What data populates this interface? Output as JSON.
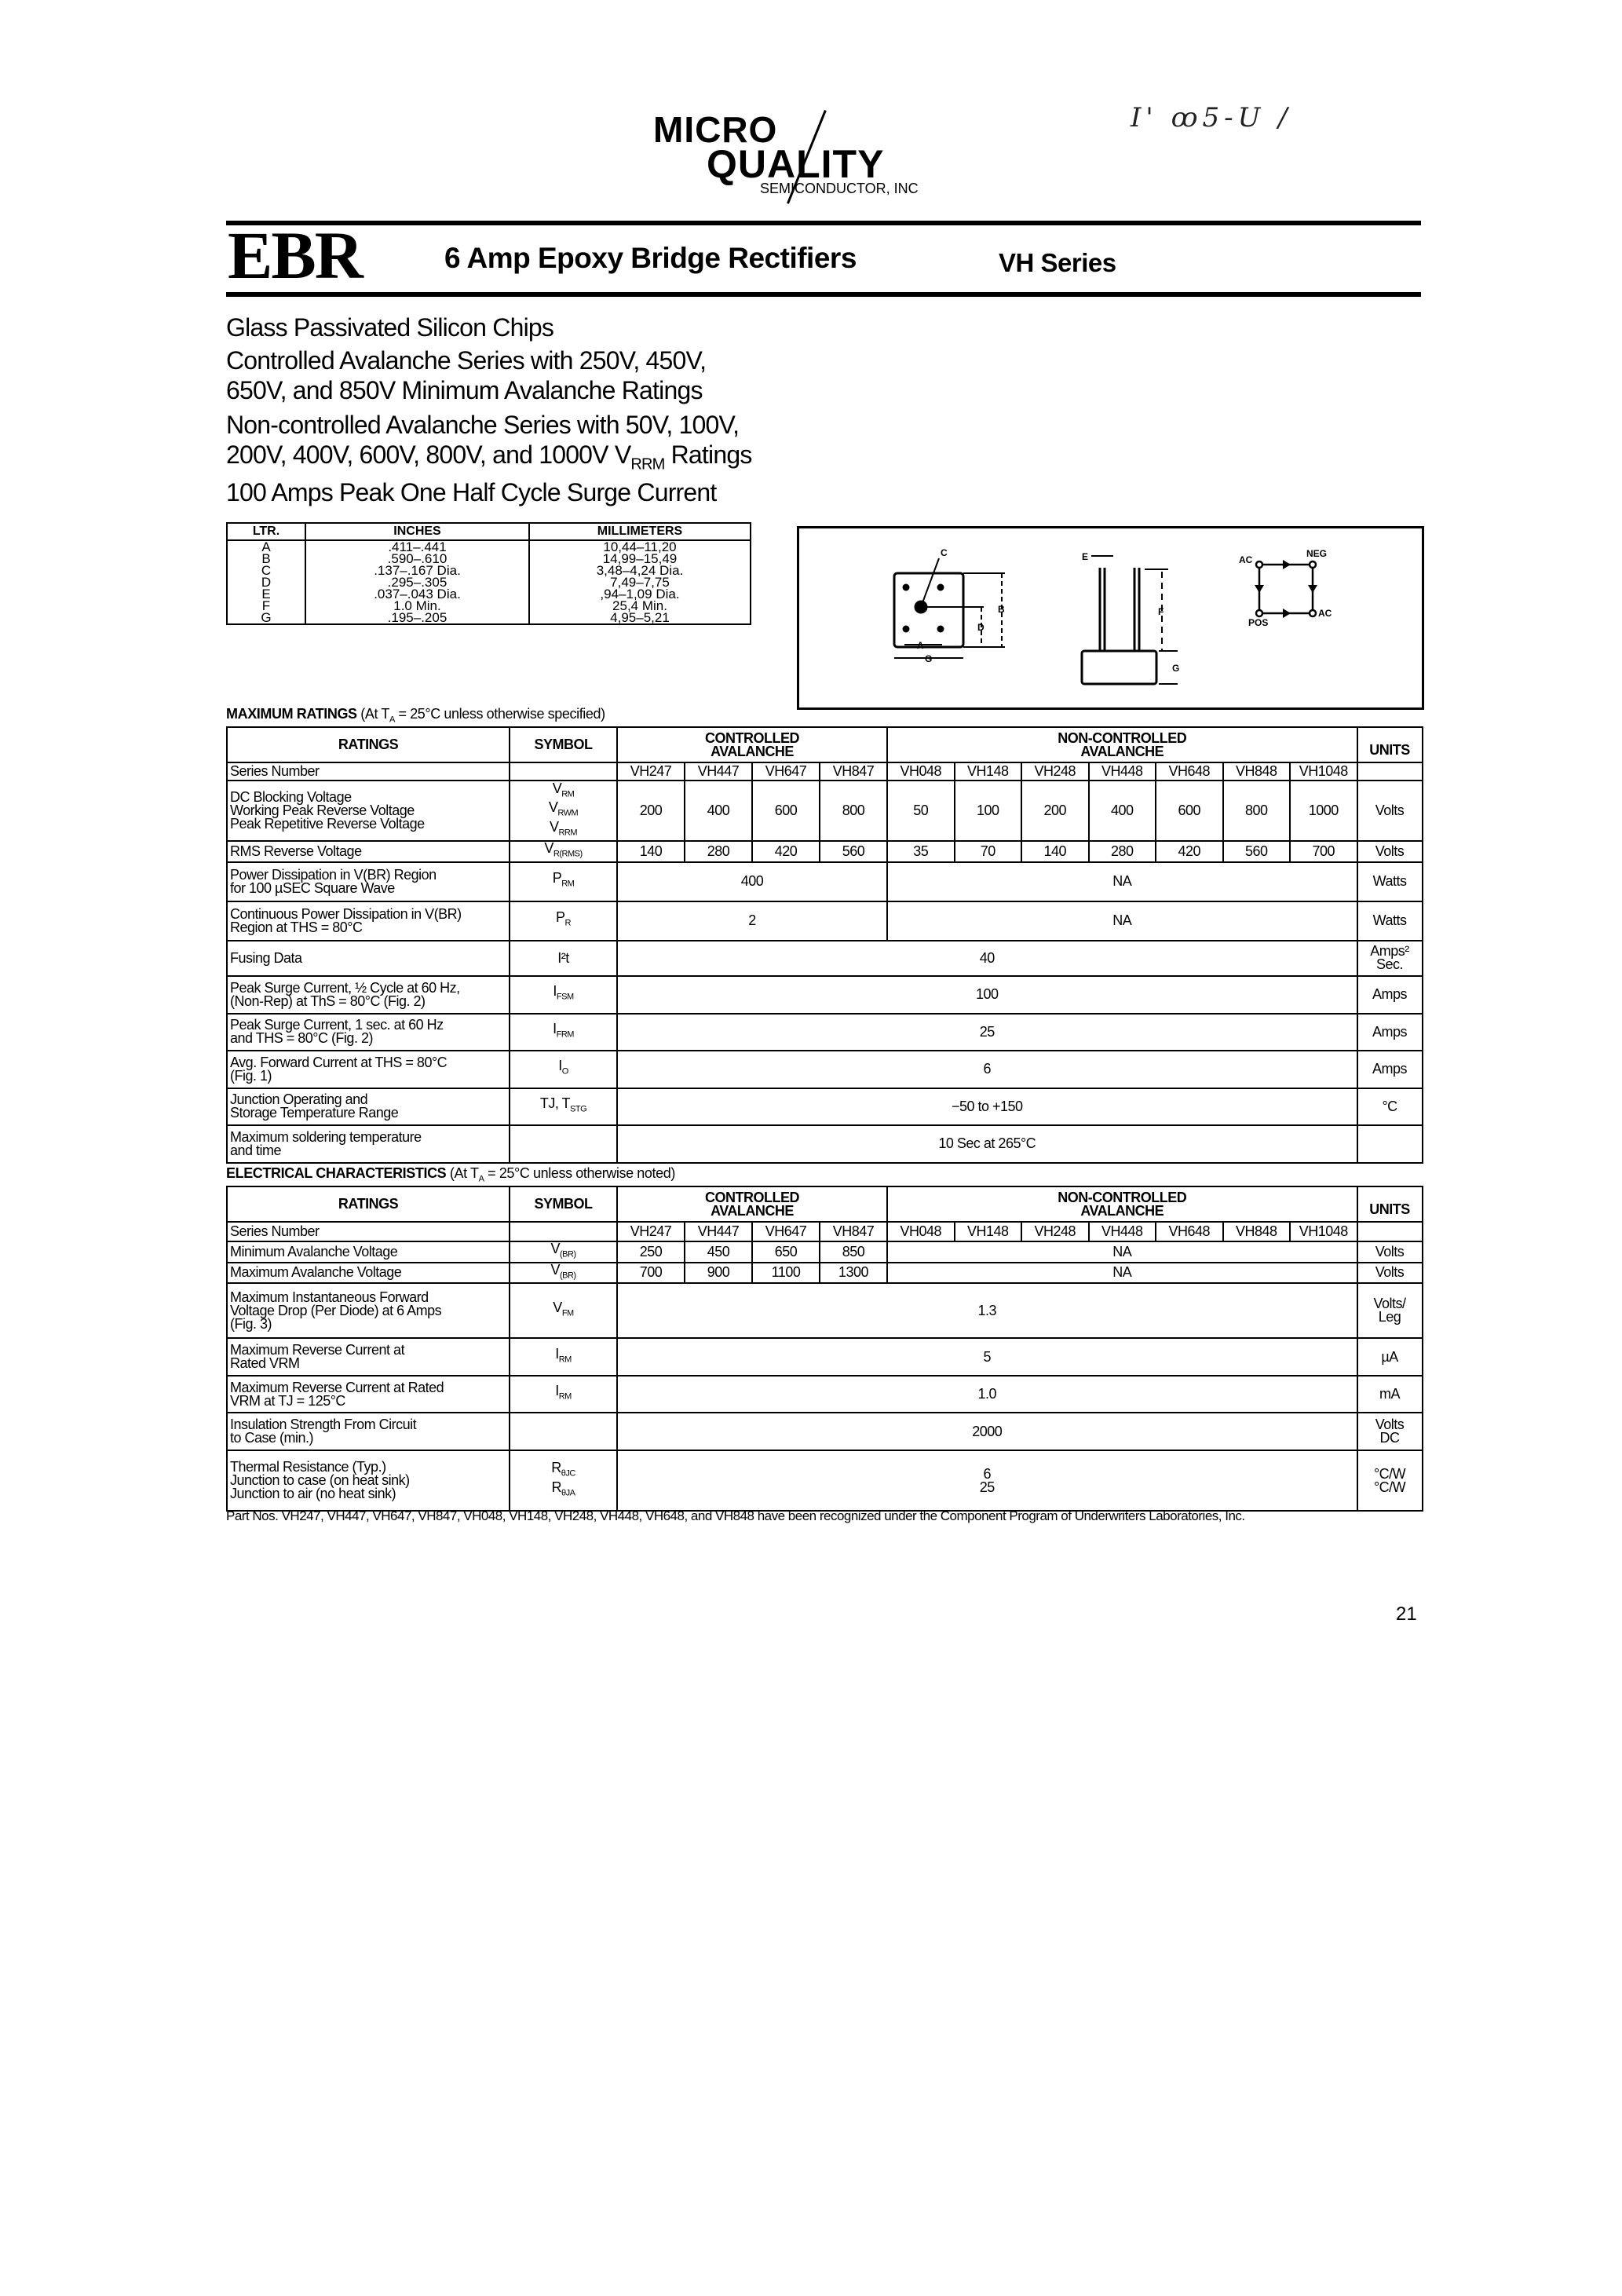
{
  "logo": {
    "line1": "MICRO",
    "line2": "QUALITY",
    "line3": "SEMICONDUCTOR, INC"
  },
  "handwritten_note": "I' ꝏ5-U /",
  "header": {
    "code": "EBR",
    "title": "6 Amp Epoxy Bridge Rectifiers",
    "series": "VH Series"
  },
  "features": [
    {
      "text": "Glass Passivated Silicon Chips"
    },
    {
      "text": "Controlled Avalanche Series with 250V, 450V,\n   650V, and 850V Minimum Avalanche Ratings"
    },
    {
      "text": "Non-controlled Avalanche Series with 50V, 100V,\n   200V, 400V, 600V, 800V, and 1000V V",
      "sub": "RRM",
      "tail": " Ratings"
    },
    {
      "text": "100 Amps Peak One Half Cycle Surge Current"
    }
  ],
  "dimensions": {
    "headers": [
      "LTR.",
      "INCHES",
      "MILLIMETERS"
    ],
    "letters": "A\nB\nC\nD\nE\nF\nG",
    "inches": ".411–.441\n.590–.610\n.137–.167 Dia.\n.295–.305\n.037–.043 Dia.\n1.0 Min.\n.195–.205",
    "mm": "10,44–11,20\n14,99–15,49\n3,48–4,24 Dia.\n7,49–7,75\n,94–1,09 Dia.\n25,4 Min.\n4,95–5,21"
  },
  "diagram": {
    "labels": {
      "a": "A",
      "b": "B",
      "c": "C",
      "d": "D",
      "e": "E",
      "f": "F",
      "g": "G",
      "ac1": "AC",
      "neg": "NEG",
      "pos": "POS",
      "ac2": "AC"
    }
  },
  "max_ratings": {
    "title_bold": "MAXIMUM RATINGS",
    "title_rest": " (At T",
    "title_sub": "A",
    "title_end": " = 25°C unless otherwise specified)",
    "col_ratings": "RATINGS",
    "col_symbol": "SYMBOL",
    "col_controlled": "CONTROLLED\nAVALANCHE",
    "col_noncontrolled": "NON-CONTROLLED\nAVALANCHE",
    "col_units": "UNITS",
    "series_label": "Series Number",
    "series": [
      "VH247",
      "VH447",
      "VH647",
      "VH847",
      "VH048",
      "VH148",
      "VH248",
      "VH448",
      "VH648",
      "VH848",
      "VH1048"
    ],
    "rows": [
      {
        "rating": "DC Blocking Voltage\nWorking Peak Reverse Voltage\nPeak Repetitive Reverse Voltage",
        "symbol": [
          {
            "b": "V",
            "s": "RM"
          },
          {
            "b": "V",
            "s": "RWM"
          },
          {
            "b": "V",
            "s": "RRM"
          }
        ],
        "values": [
          "200",
          "400",
          "600",
          "800",
          "50",
          "100",
          "200",
          "400",
          "600",
          "800",
          "1000"
        ],
        "units": "Volts"
      },
      {
        "rating": "RMS Reverse Voltage",
        "symbol": [
          {
            "b": "V",
            "s": "R(RMS)"
          }
        ],
        "values": [
          "140",
          "280",
          "420",
          "560",
          "35",
          "70",
          "140",
          "280",
          "420",
          "560",
          "700"
        ],
        "units": "Volts"
      },
      {
        "rating": "Power Dissipation in V(BR) Region\nfor 100 µSEC Square Wave",
        "symbol": [
          {
            "b": "P",
            "s": "RM"
          }
        ],
        "controlled": "400",
        "noncontrolled": "NA",
        "units": "Watts"
      },
      {
        "rating": "Continuous Power Dissipation in V(BR)\nRegion at THS = 80°C",
        "symbol": [
          {
            "b": "P",
            "s": "R"
          }
        ],
        "controlled": "2",
        "noncontrolled": "NA",
        "units": "Watts"
      },
      {
        "rating": "Fusing Data",
        "symbol": [
          {
            "b": "I²t",
            "s": ""
          }
        ],
        "all": "40",
        "units": "Amps²\nSec."
      },
      {
        "rating": "Peak Surge Current, ½ Cycle at 60 Hz,\n(Non-Rep) at ThS = 80°C (Fig. 2)",
        "symbol": [
          {
            "b": "I",
            "s": "FSM"
          }
        ],
        "all": "100",
        "units": "Amps"
      },
      {
        "rating": "Peak Surge Current, 1 sec. at 60 Hz\nand THS = 80°C (Fig. 2)",
        "symbol": [
          {
            "b": "I",
            "s": "FRM"
          }
        ],
        "all": "25",
        "units": "Amps"
      },
      {
        "rating": "Avg. Forward Current at THS = 80°C\n(Fig. 1)",
        "symbol": [
          {
            "b": "I",
            "s": "O"
          }
        ],
        "all": "6",
        "units": "Amps"
      },
      {
        "rating": "Junction Operating and\nStorage Temperature Range",
        "symbol": [
          {
            "b": "TJ, T",
            "s": "STG"
          }
        ],
        "all": "−50 to +150",
        "units": "°C"
      },
      {
        "rating": "Maximum soldering temperature\nand time",
        "symbol": [],
        "all": "10 Sec at 265°C",
        "units": ""
      }
    ]
  },
  "electrical": {
    "title_bold": "ELECTRICAL CHARACTERISTICS",
    "title_rest": " (At T",
    "title_sub": "A",
    "title_end": " = 25°C unless otherwise noted)",
    "col_ratings": "RATINGS",
    "col_symbol": "SYMBOL",
    "col_controlled": "CONTROLLED\nAVALANCHE",
    "col_noncontrolled": "NON-CONTROLLED\nAVALANCHE",
    "col_units": "UNITS",
    "series_label": "Series Number",
    "series": [
      "VH247",
      "VH447",
      "VH647",
      "VH847",
      "VH048",
      "VH148",
      "VH248",
      "VH448",
      "VH648",
      "VH848",
      "VH1048"
    ],
    "rows": [
      {
        "rating": "Minimum Avalanche Voltage",
        "symbol": [
          {
            "b": "V",
            "s": "(BR)"
          }
        ],
        "ctl_values": [
          "250",
          "450",
          "650",
          "850"
        ],
        "noncontrolled": "NA",
        "units": "Volts"
      },
      {
        "rating": "Maximum Avalanche Voltage",
        "symbol": [
          {
            "b": "V",
            "s": "(BR)"
          }
        ],
        "ctl_values": [
          "700",
          "900",
          "1100",
          "1300"
        ],
        "noncontrolled": "NA",
        "units": "Volts"
      },
      {
        "rating": "Maximum Instantaneous Forward\nVoltage Drop (Per Diode) at 6 Amps\n(Fig. 3)",
        "symbol": [
          {
            "b": "V",
            "s": "FM"
          }
        ],
        "all": "1.3",
        "units": "Volts/\nLeg"
      },
      {
        "rating": "Maximum Reverse Current at\nRated VRM",
        "symbol": [
          {
            "b": "I",
            "s": "RM"
          }
        ],
        "all": "5",
        "units": "µA"
      },
      {
        "rating": "Maximum Reverse Current at Rated\nVRM at TJ = 125°C",
        "symbol": [
          {
            "b": "I",
            "s": "RM"
          }
        ],
        "all": "1.0",
        "units": "mA"
      },
      {
        "rating": "Insulation Strength From Circuit\nto Case (min.)",
        "symbol": [],
        "all": "2000",
        "units": "Volts\nDC"
      },
      {
        "rating": "Thermal Resistance (Typ.)\nJunction to case (on heat sink)\nJunction to air (no heat sink)",
        "symbol": [
          {
            "b": "R",
            "s": "θJC"
          },
          {
            "b": "R",
            "s": "θJA"
          }
        ],
        "all": "6\n25",
        "units": "°C/W\n°C/W"
      }
    ]
  },
  "footnote": "Part Nos. VH247, VH447, VH647, VH847, VH048, VH148, VH248, VH448, VH648, and VH848 have been recognized under the Component Program of Underwriters Laboratories, Inc.",
  "page_number": "21"
}
